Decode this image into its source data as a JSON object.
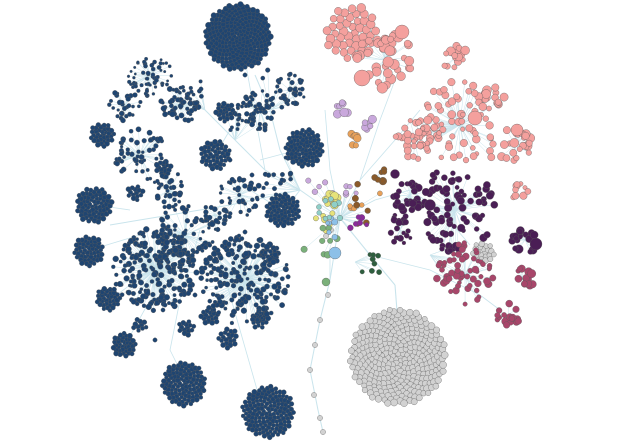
{
  "colors": {
    "background": "#ffffff",
    "edge": "#c9e4ec",
    "node_stroke": "#5a5a5a"
  },
  "communities": [
    {
      "name": "navy-community",
      "fill": "#1f4571"
    },
    {
      "name": "salmon-community",
      "fill": "#f4a09d"
    },
    {
      "name": "plum-community",
      "fill": "#4a1e55"
    },
    {
      "name": "rose-community",
      "fill": "#a8466a"
    },
    {
      "name": "grey-community",
      "fill": "#d2d2d2"
    },
    {
      "name": "lavender-community",
      "fill": "#c9a8dc"
    },
    {
      "name": "orange-community",
      "fill": "#e8a15a"
    },
    {
      "name": "brown-community",
      "fill": "#8a5a2a"
    },
    {
      "name": "yellow-community",
      "fill": "#e6e27a"
    },
    {
      "name": "green-community",
      "fill": "#7ab07a"
    },
    {
      "name": "darkgreen-community",
      "fill": "#2e5e3e"
    },
    {
      "name": "lightblue-community",
      "fill": "#8cc0e8"
    },
    {
      "name": "teal-community",
      "fill": "#8fcfc8"
    },
    {
      "name": "magenta-community",
      "fill": "#8a2a9a"
    }
  ]
}
